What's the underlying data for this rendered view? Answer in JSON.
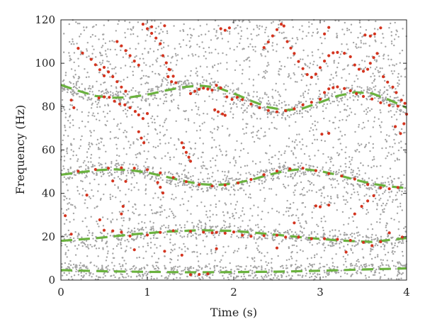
{
  "chart_data": {
    "type": "scatter",
    "title": "",
    "xlabel": "Time (s)",
    "ylabel": "Frequency (Hz)",
    "xlim": [
      0,
      4
    ],
    "ylim": [
      0,
      120
    ],
    "x_ticks": [
      "0",
      "1",
      "2",
      "3",
      "4"
    ],
    "y_ticks": [
      "0",
      "20",
      "40",
      "60",
      "80",
      "100",
      "120"
    ],
    "grid": false,
    "legend": "none",
    "series": [
      {
        "style": "dashed-line",
        "color": "#6ab23e",
        "points": [
          [
            0,
            90
          ],
          [
            0.2,
            87.3
          ],
          [
            0.4,
            84.9
          ],
          [
            0.6,
            84.1
          ],
          [
            0.8,
            84.3
          ],
          [
            1.0,
            85.5
          ],
          [
            1.2,
            87.3
          ],
          [
            1.4,
            88.9
          ],
          [
            1.6,
            89.7
          ],
          [
            1.8,
            88.9
          ],
          [
            2.0,
            86.1
          ],
          [
            2.2,
            82.7
          ],
          [
            2.4,
            79.7
          ],
          [
            2.6,
            78.3
          ],
          [
            2.8,
            79.2
          ],
          [
            3.0,
            82.0
          ],
          [
            3.2,
            84.9
          ],
          [
            3.4,
            86.6
          ],
          [
            3.6,
            86.1
          ],
          [
            3.8,
            83.1
          ],
          [
            4.0,
            79.5
          ]
        ]
      },
      {
        "style": "dashed-line",
        "color": "#6ab23e",
        "points": [
          [
            0,
            48.6
          ],
          [
            0.2,
            49.6
          ],
          [
            0.4,
            50.6
          ],
          [
            0.6,
            51.1
          ],
          [
            0.8,
            50.7
          ],
          [
            1.0,
            49.6
          ],
          [
            1.2,
            47.8
          ],
          [
            1.4,
            45.9
          ],
          [
            1.6,
            44.3
          ],
          [
            1.8,
            43.8
          ],
          [
            2.0,
            44.5
          ],
          [
            2.2,
            46.2
          ],
          [
            2.4,
            48.5
          ],
          [
            2.6,
            50.4
          ],
          [
            2.8,
            51.2
          ],
          [
            3.0,
            50.3
          ],
          [
            3.2,
            48.5
          ],
          [
            3.4,
            46.3
          ],
          [
            3.6,
            44.4
          ],
          [
            3.8,
            43.2
          ],
          [
            4.0,
            42.4
          ]
        ]
      },
      {
        "style": "dashed-line",
        "color": "#6ab23e",
        "points": [
          [
            0,
            18.1
          ],
          [
            0.4,
            19.3
          ],
          [
            0.8,
            21.0
          ],
          [
            1.2,
            22.3
          ],
          [
            1.6,
            23.0
          ],
          [
            2.0,
            22.7
          ],
          [
            2.4,
            21.3
          ],
          [
            2.8,
            19.7
          ],
          [
            3.2,
            18.3
          ],
          [
            3.6,
            17.6
          ],
          [
            4.0,
            19.4
          ]
        ]
      },
      {
        "style": "dashed-line",
        "color": "#6ab23e",
        "points": [
          [
            0,
            4.6
          ],
          [
            0.5,
            4.1
          ],
          [
            1.0,
            3.8
          ],
          [
            1.5,
            3.6
          ],
          [
            2.0,
            3.7
          ],
          [
            2.5,
            3.9
          ],
          [
            3.0,
            4.3
          ],
          [
            3.5,
            4.9
          ],
          [
            4.0,
            5.4
          ]
        ]
      },
      {
        "style": "dots",
        "color": "#d4341f",
        "points": [
          [
            0.44,
            84.0
          ],
          [
            0.5,
            84.5
          ],
          [
            0.56,
            84.3
          ],
          [
            0.62,
            82.5
          ],
          [
            0.68,
            81.2
          ],
          [
            0.74,
            80.8
          ],
          [
            0.8,
            79.5
          ],
          [
            0.86,
            77.8
          ],
          [
            0.9,
            76.2
          ],
          [
            0.95,
            74.5
          ],
          [
            1.0,
            76.8
          ],
          [
            1.5,
            86.0
          ],
          [
            1.55,
            87.1
          ],
          [
            1.6,
            88.0
          ],
          [
            1.65,
            88.5
          ],
          [
            1.7,
            88.1
          ],
          [
            1.75,
            87.6
          ],
          [
            1.8,
            89.8
          ],
          [
            1.85,
            88.6
          ],
          [
            1.92,
            84.5
          ],
          [
            1.98,
            83.3
          ],
          [
            2.04,
            84.3
          ],
          [
            2.1,
            83.2
          ],
          [
            2.2,
            81.2
          ],
          [
            2.3,
            79.5
          ],
          [
            2.4,
            78.2
          ],
          [
            2.5,
            77.6
          ],
          [
            2.6,
            78.1
          ],
          [
            2.7,
            79.0
          ],
          [
            2.8,
            80.8
          ],
          [
            2.9,
            82.0
          ],
          [
            3.0,
            83.4
          ],
          [
            3.05,
            86.5
          ],
          [
            3.1,
            88.2
          ],
          [
            3.15,
            88.7
          ],
          [
            3.2,
            89.1
          ],
          [
            3.28,
            88.3
          ],
          [
            3.35,
            87.3
          ],
          [
            3.42,
            86.0
          ],
          [
            3.5,
            84.7
          ],
          [
            3.6,
            83.5
          ],
          [
            3.7,
            81.8
          ],
          [
            3.8,
            80.6
          ],
          [
            3.9,
            80.2
          ],
          [
            1.78,
            78.5
          ],
          [
            1.82,
            77.6
          ],
          [
            1.87,
            76.6
          ],
          [
            1.9,
            76.0
          ],
          [
            0.4,
            51.0
          ],
          [
            0.55,
            51.6
          ],
          [
            0.7,
            51.8
          ],
          [
            0.85,
            51.6
          ],
          [
            1.0,
            50.9
          ],
          [
            1.15,
            49.4
          ],
          [
            1.3,
            47.3
          ],
          [
            1.45,
            45.4
          ],
          [
            1.6,
            44.0
          ],
          [
            1.75,
            43.4
          ],
          [
            1.9,
            43.8
          ],
          [
            2.05,
            44.8
          ],
          [
            2.2,
            46.4
          ],
          [
            2.35,
            48.6
          ],
          [
            2.5,
            50.3
          ],
          [
            2.65,
            51.3
          ],
          [
            2.8,
            51.6
          ],
          [
            2.95,
            50.5
          ],
          [
            3.1,
            49.1
          ],
          [
            3.25,
            48.0
          ],
          [
            3.4,
            46.6
          ],
          [
            3.55,
            44.1
          ],
          [
            3.7,
            42.6
          ],
          [
            3.8,
            42.1
          ],
          [
            3.9,
            42.7
          ],
          [
            3.62,
            38.9
          ],
          [
            3.55,
            36.5
          ],
          [
            3.48,
            34.0
          ],
          [
            3.1,
            34.6
          ],
          [
            3.0,
            33.8
          ],
          [
            2.95,
            34.2
          ],
          [
            3.02,
            67.3
          ],
          [
            3.1,
            67.7
          ],
          [
            0.5,
            23.0
          ],
          [
            0.6,
            22.7
          ],
          [
            0.7,
            22.1
          ],
          [
            0.8,
            20.3
          ],
          [
            1.0,
            20.8
          ],
          [
            1.15,
            22.0
          ],
          [
            1.3,
            22.8
          ],
          [
            1.5,
            22.5
          ],
          [
            1.65,
            22.1
          ],
          [
            1.75,
            21.8
          ],
          [
            1.8,
            22.0
          ],
          [
            1.9,
            21.6
          ],
          [
            2.0,
            22.2
          ],
          [
            2.1,
            20.7
          ],
          [
            2.2,
            20.2
          ],
          [
            2.35,
            20.5
          ],
          [
            2.5,
            20.7
          ],
          [
            2.6,
            19.8
          ],
          [
            2.75,
            19.8
          ],
          [
            2.9,
            19.1
          ],
          [
            3.05,
            19.1
          ],
          [
            3.2,
            18.8
          ],
          [
            3.35,
            18.3
          ],
          [
            3.5,
            17.4
          ],
          [
            3.6,
            15.9
          ],
          [
            3.7,
            17.7
          ],
          [
            0.85,
            14.0
          ],
          [
            1.2,
            13.3
          ],
          [
            1.8,
            14.5
          ],
          [
            2.5,
            14.8
          ],
          [
            3.3,
            12.9
          ],
          [
            1.4,
            11.5
          ],
          [
            1.5,
            2.5
          ],
          [
            1.6,
            2.6
          ],
          [
            1.7,
            2.9
          ],
          [
            0.6,
            45.7
          ],
          [
            0.45,
            27.8
          ],
          [
            0.7,
            30.5
          ],
          [
            0.72,
            34.0
          ],
          [
            0.75,
            45.5
          ],
          [
            2.7,
            26.4
          ],
          [
            3.4,
            30.5
          ],
          [
            3.8,
            21.8
          ],
          [
            3.95,
            19.8
          ],
          [
            0.3,
            39.2
          ],
          [
            0.2,
            50.2
          ],
          [
            0.12,
            21.2
          ],
          [
            0.05,
            29.7
          ],
          [
            0.9,
            68.4
          ],
          [
            0.93,
            65.5
          ],
          [
            0.96,
            63.3
          ],
          [
            1.4,
            63.3
          ],
          [
            1.42,
            61.1
          ],
          [
            1.45,
            58.9
          ],
          [
            1.48,
            56.7
          ],
          [
            1.5,
            54.8
          ],
          [
            1.12,
            45.0
          ],
          [
            1.15,
            42.8
          ],
          [
            1.18,
            40.2
          ],
          [
            0.95,
            118.0
          ],
          [
            1.0,
            115.9
          ],
          [
            1.05,
            113.8
          ],
          [
            1.1,
            111.6
          ],
          [
            1.15,
            109.0
          ],
          [
            0.65,
            110.0
          ],
          [
            0.7,
            108.0
          ],
          [
            0.75,
            105.8
          ],
          [
            0.8,
            103.5
          ],
          [
            0.85,
            101.0
          ],
          [
            0.9,
            99.1
          ],
          [
            0.5,
            98.1
          ],
          [
            0.55,
            96.0
          ],
          [
            0.6,
            93.8
          ],
          [
            0.65,
            91.5
          ],
          [
            0.7,
            89.0
          ],
          [
            0.75,
            87.1
          ],
          [
            0.35,
            101.8
          ],
          [
            0.4,
            99.3
          ],
          [
            0.45,
            97.0
          ],
          [
            0.5,
            94.2
          ],
          [
            0.2,
            106.9
          ],
          [
            0.25,
            104.7
          ],
          [
            1.25,
            97.2
          ],
          [
            1.3,
            94.0
          ],
          [
            1.33,
            91.0
          ],
          [
            1.85,
            115.9
          ],
          [
            1.9,
            115.2
          ],
          [
            1.95,
            116.3
          ],
          [
            2.35,
            107.2
          ],
          [
            2.4,
            109.8
          ],
          [
            2.45,
            112.6
          ],
          [
            2.5,
            115.5
          ],
          [
            2.55,
            118.0
          ],
          [
            2.58,
            117.2
          ],
          [
            2.62,
            110.0
          ],
          [
            2.66,
            107.0
          ],
          [
            2.7,
            104.5
          ],
          [
            2.75,
            100.8
          ],
          [
            2.8,
            97.5
          ],
          [
            2.85,
            94.8
          ],
          [
            2.9,
            93.5
          ],
          [
            2.95,
            95.0
          ],
          [
            3.0,
            98.0
          ],
          [
            3.05,
            101.0
          ],
          [
            3.1,
            103.5
          ],
          [
            3.15,
            104.8
          ],
          [
            3.2,
            105.0
          ],
          [
            3.28,
            104.6
          ],
          [
            3.35,
            103.0
          ],
          [
            3.4,
            99.2
          ],
          [
            3.45,
            97.2
          ],
          [
            3.5,
            96.3
          ],
          [
            3.55,
            97.2
          ],
          [
            3.58,
            100.0
          ],
          [
            3.62,
            102.6
          ],
          [
            3.66,
            104.5
          ],
          [
            3.52,
            113.0
          ],
          [
            3.58,
            112.5
          ],
          [
            3.63,
            113.5
          ],
          [
            3.7,
            116.3
          ],
          [
            3.05,
            113.5
          ],
          [
            3.1,
            116.5
          ],
          [
            3.73,
            93.8
          ],
          [
            3.78,
            91.3
          ],
          [
            3.84,
            89.0
          ],
          [
            3.88,
            86.5
          ],
          [
            3.94,
            83.0
          ],
          [
            3.98,
            81.5
          ],
          [
            4.0,
            76.5
          ],
          [
            3.87,
            70.8
          ],
          [
            3.97,
            72.1
          ],
          [
            3.93,
            67.6
          ],
          [
            0.12,
            83.0
          ],
          [
            0.15,
            79.5
          ],
          [
            1.05,
            116.8
          ],
          [
            1.2,
            117.3
          ],
          [
            1.18,
            103.5
          ],
          [
            1.22,
            100.2
          ],
          [
            1.26,
            97.0
          ],
          [
            1.24,
            93.8
          ],
          [
            1.28,
            91.5
          ]
        ]
      },
      {
        "style": "noise-dots",
        "color": "#a3a3a3",
        "points": []
      }
    ]
  }
}
